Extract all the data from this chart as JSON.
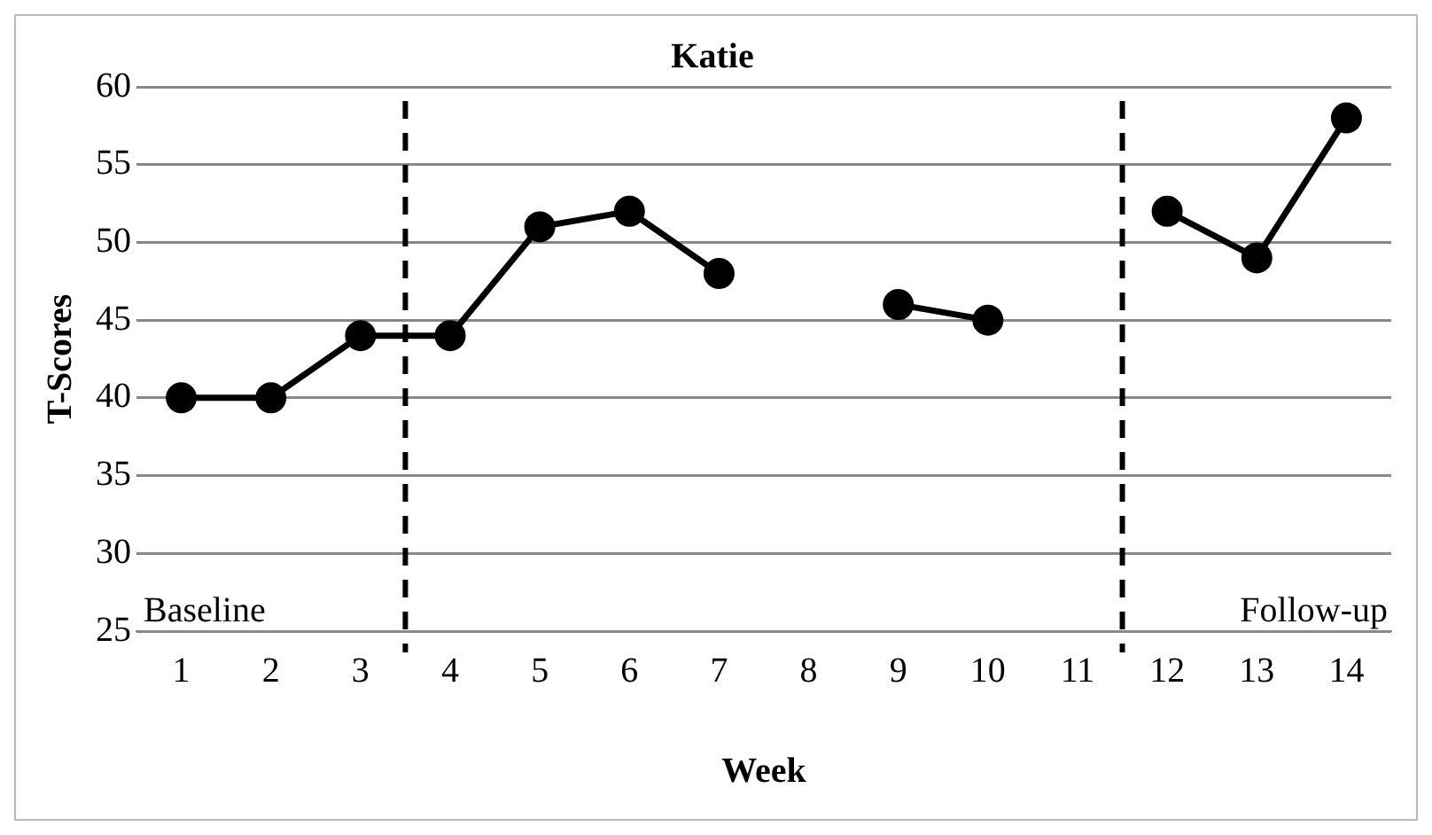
{
  "chart_data": {
    "type": "line",
    "title": "Katie",
    "xlabel": "Week",
    "ylabel": "T-Scores",
    "x": [
      1,
      2,
      3,
      4,
      5,
      6,
      7,
      8,
      9,
      10,
      11,
      12,
      13,
      14
    ],
    "series": [
      {
        "color": "#000000",
        "values": [
          40,
          40,
          44,
          44,
          51,
          52,
          48,
          null,
          46,
          45,
          null,
          52,
          49,
          58
        ]
      }
    ],
    "xlim": [
      0.5,
      14.5
    ],
    "xticks": [
      1,
      2,
      3,
      4,
      5,
      6,
      7,
      8,
      9,
      10,
      11,
      12,
      13,
      14
    ],
    "ylim": [
      25,
      60
    ],
    "yticks": [
      25,
      30,
      35,
      40,
      45,
      50,
      55,
      60
    ],
    "grid": "y",
    "legend": false,
    "marker": "circle",
    "line_style": "solid",
    "ref_lines": [
      {
        "axis": "x",
        "value": 3.5,
        "color": "#000000",
        "line_style": "dashed"
      },
      {
        "axis": "x",
        "value": 11.5,
        "color": "#000000",
        "line_style": "dashed"
      }
    ],
    "annotations": [
      "Baseline",
      "Follow-up"
    ]
  }
}
